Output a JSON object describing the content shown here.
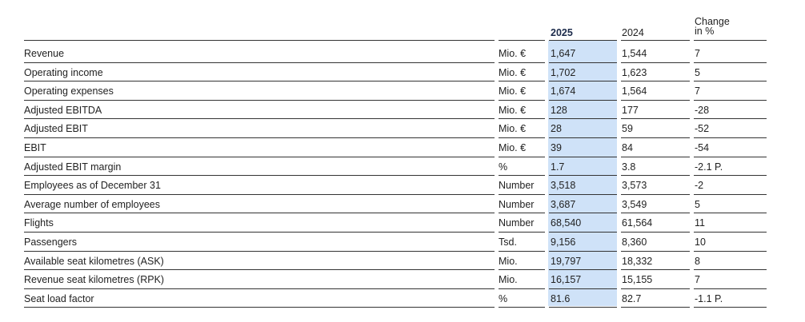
{
  "table": {
    "columns": {
      "current": "2025",
      "previous": "2024",
      "change": [
        "Change",
        "in %"
      ]
    },
    "rows": [
      [
        "Revenue",
        "Mio. €",
        "1,647",
        "1,544",
        "7"
      ],
      [
        "Operating income",
        "Mio. €",
        "1,702",
        "1,623",
        "5"
      ],
      [
        "Operating expenses",
        "Mio. €",
        "1,674",
        "1,564",
        "7"
      ],
      [
        "Adjusted EBITDA",
        "Mio. €",
        "128",
        "177",
        "-28"
      ],
      [
        "Adjusted EBIT",
        "Mio. €",
        "28",
        "59",
        "-52"
      ],
      [
        "EBIT",
        "Mio. €",
        "39",
        "84",
        "-54"
      ],
      [
        "Adjusted EBIT margin",
        "%",
        "1.7",
        "3.8",
        "-2.1 P."
      ],
      [
        "Employees as of December 31",
        "Number",
        "3,518",
        "3,573",
        "-2"
      ],
      [
        "Average number of employees",
        "Number",
        "3,687",
        "3,549",
        "5"
      ],
      [
        "Flights",
        "Number",
        "68,540",
        "61,564",
        "11"
      ],
      [
        "Passengers",
        "Tsd.",
        "9,156",
        "8,360",
        "10"
      ],
      [
        "Available seat kilometres (ASK)",
        "Mio.",
        "19,797",
        "18,332",
        "8"
      ],
      [
        "Revenue seat kilometres (RPK)",
        "Mio.",
        "16,157",
        "15,155",
        "7"
      ],
      [
        "Seat load factor",
        "%",
        "81.6",
        "82.7",
        "-1.1 P."
      ]
    ]
  }
}
